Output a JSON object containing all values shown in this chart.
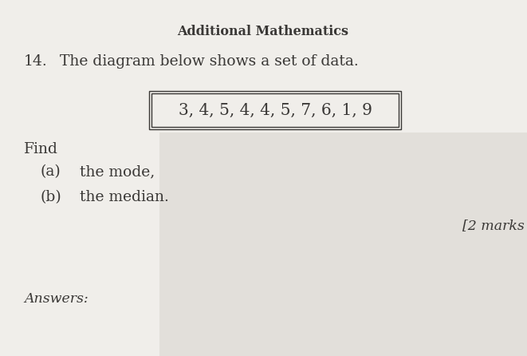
{
  "title": "Additional Mathematics",
  "question_number": "14.",
  "question_text": "The diagram below shows a set of data.",
  "data_set": "3, 4, 5, 4, 4, 5, 7, 6, 1, 9",
  "find_label": "Find",
  "part_a_label": "(a)",
  "part_a_text": "the mode,",
  "part_b_label": "(b)",
  "part_b_text": "the median.",
  "marks": "[2 marks",
  "answers_label": "Answers:",
  "bg_color": "#f0eeea",
  "text_color": "#3a3836",
  "title_fontsize": 11.5,
  "body_fontsize": 13.5,
  "marks_fontsize": 12.5,
  "answers_fontsize": 12.5,
  "shadow_color": "#b0aeaa"
}
